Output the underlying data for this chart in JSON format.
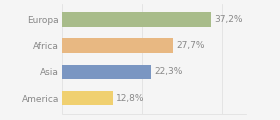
{
  "categories": [
    "Europa",
    "Africa",
    "Asia",
    "America"
  ],
  "values": [
    37.2,
    27.7,
    22.3,
    12.8
  ],
  "labels": [
    "37,2%",
    "27,7%",
    "22,3%",
    "12,8%"
  ],
  "bar_colors": [
    "#a8bc8a",
    "#e8b882",
    "#7a96c2",
    "#f0d070"
  ],
  "background_color": "#f5f5f5",
  "xlim": [
    0,
    46
  ],
  "bar_height": 0.55,
  "label_fontsize": 6.5,
  "category_fontsize": 6.5,
  "text_color": "#888888",
  "grid_color": "#dddddd"
}
